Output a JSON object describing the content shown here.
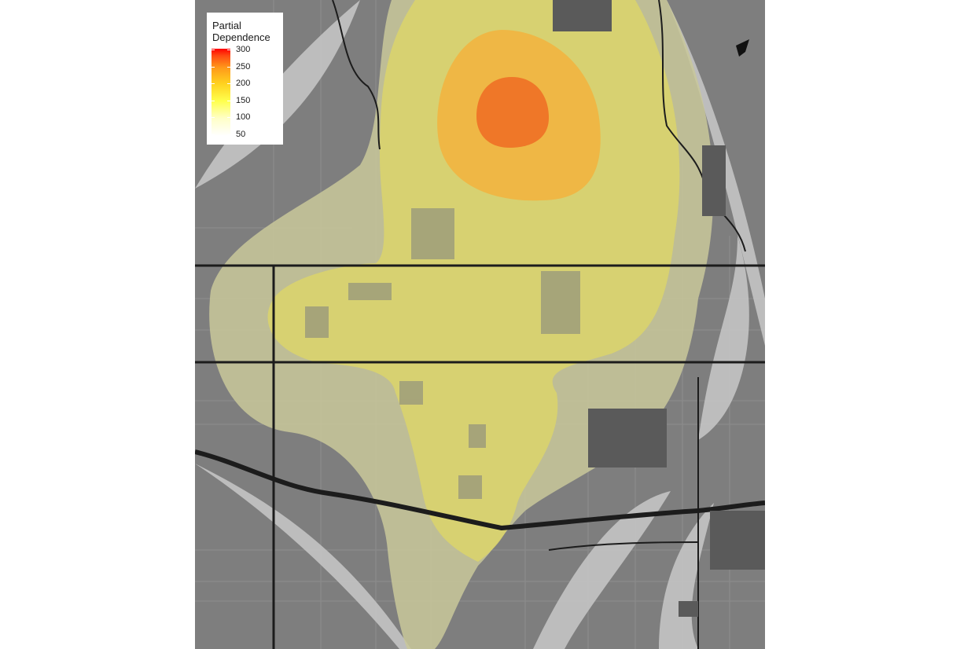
{
  "legend": {
    "title_line1": "Partial",
    "title_line2": "Dependence",
    "ticks": [
      "300",
      "250",
      "200",
      "150",
      "100",
      "50"
    ],
    "gradient_colors": [
      "#ffffff",
      "#ffffc8",
      "#ffff4d",
      "#ffd21f",
      "#ff9a1a",
      "#ff4a12",
      "#ff0000"
    ]
  },
  "map": {
    "basemap_color": "#7e7e7e",
    "road_color": "#1c1c1c",
    "contour_fill_colors": [
      "#c8c89a",
      "#d8d26a",
      "#f2b640",
      "#ef7a26",
      "#f26522"
    ]
  }
}
